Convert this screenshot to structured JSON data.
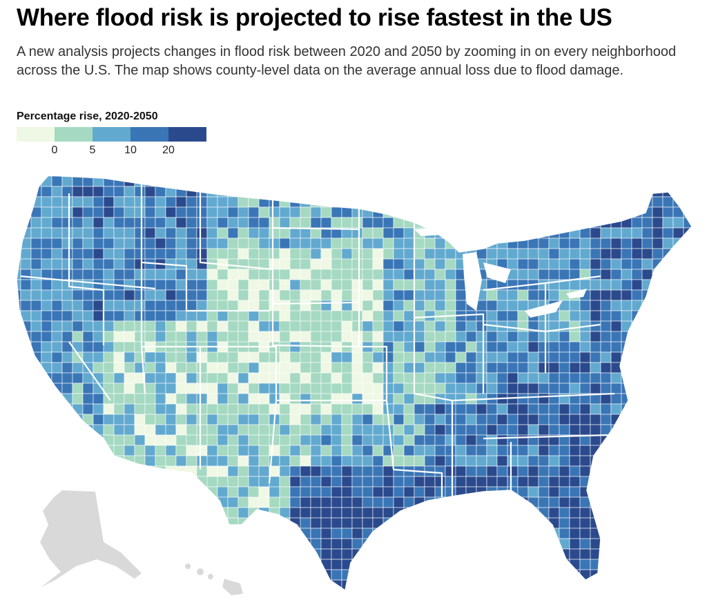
{
  "header": {
    "title": "Where flood risk is projected to rise fastest in the US",
    "subtitle": "A new analysis projects changes in flood risk between 2020 and 2050 by zooming in on every neighborhood across the U.S. The map shows county-level data on the average annual loss due to flood damage."
  },
  "legend": {
    "title": "Percentage rise, 2020-2050",
    "ticks": [
      "0",
      "5",
      "10",
      "20"
    ],
    "colors": [
      "#eef8e4",
      "#a5d9c2",
      "#62a9cf",
      "#3a76b6",
      "#2b4a8d"
    ]
  },
  "map": {
    "type": "choropleth",
    "unit": "county",
    "region": "contiguous United States",
    "inset_regions": [
      "Alaska",
      "Hawaii"
    ],
    "inset_color": "#d9d9d9",
    "border_color": "#ffffff"
  }
}
